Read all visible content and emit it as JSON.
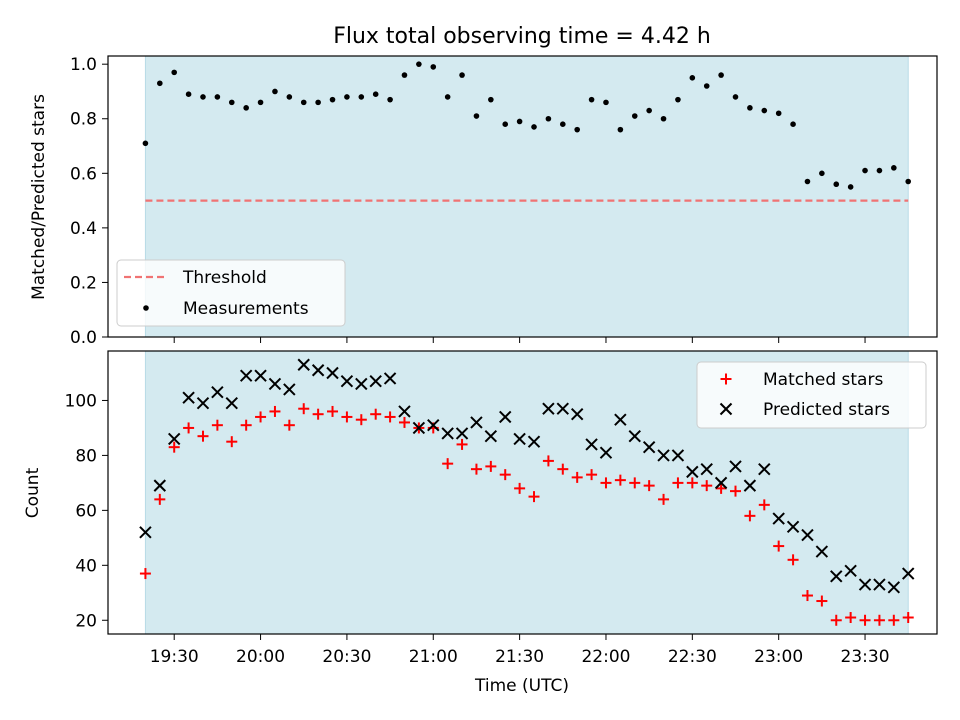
{
  "title": "Flux total observing time = 4.42 h",
  "chart_data": [
    {
      "type": "scatter",
      "ylabel": "Matched/Predicted stars",
      "xlabel": "",
      "xlim": [
        "19:07",
        "23:55"
      ],
      "ylim": [
        0,
        1.03
      ],
      "yticks": [
        0.0,
        0.2,
        0.4,
        0.6,
        0.8,
        1.0
      ],
      "yticklabels": [
        "0.0",
        "0.2",
        "0.4",
        "0.6",
        "0.8",
        "1.0"
      ],
      "grid": false,
      "legend_position": "lower-left",
      "observing_span": [
        "19:20",
        "23:45"
      ],
      "threshold": 0.5,
      "series": [
        {
          "name": "Threshold",
          "kind": "dashed-line",
          "color": "#f07373",
          "x": [
            "19:20",
            "23:45"
          ],
          "y": [
            0.5,
            0.5
          ]
        },
        {
          "name": "Measurements",
          "kind": "dot",
          "color": "#000000",
          "x": [
            "19:20",
            "19:25",
            "19:30",
            "19:35",
            "19:40",
            "19:45",
            "19:50",
            "19:55",
            "20:00",
            "20:05",
            "20:10",
            "20:15",
            "20:20",
            "20:25",
            "20:30",
            "20:35",
            "20:40",
            "20:45",
            "20:50",
            "20:55",
            "21:00",
            "21:05",
            "21:10",
            "21:15",
            "21:20",
            "21:25",
            "21:30",
            "21:35",
            "21:40",
            "21:45",
            "21:50",
            "21:55",
            "22:00",
            "22:05",
            "22:10",
            "22:15",
            "22:20",
            "22:25",
            "22:30",
            "22:35",
            "22:40",
            "22:45",
            "22:50",
            "22:55",
            "23:00",
            "23:05",
            "23:10",
            "23:15",
            "23:20",
            "23:25",
            "23:30",
            "23:35",
            "23:40",
            "23:45"
          ],
          "y": [
            0.71,
            0.93,
            0.97,
            0.89,
            0.88,
            0.88,
            0.86,
            0.84,
            0.86,
            0.9,
            0.88,
            0.86,
            0.86,
            0.87,
            0.88,
            0.88,
            0.89,
            0.87,
            0.96,
            1.0,
            0.99,
            0.88,
            0.96,
            0.81,
            0.87,
            0.78,
            0.79,
            0.77,
            0.8,
            0.78,
            0.76,
            0.87,
            0.86,
            0.76,
            0.81,
            0.83,
            0.8,
            0.87,
            0.95,
            0.92,
            0.96,
            0.88,
            0.84,
            0.83,
            0.82,
            0.78,
            0.57,
            0.6,
            0.56,
            0.55,
            0.61,
            0.61,
            0.62,
            0.57
          ]
        }
      ]
    },
    {
      "type": "scatter",
      "xlabel": "Time (UTC)",
      "ylabel": "Count",
      "xlim": [
        "19:07",
        "23:55"
      ],
      "ylim": [
        15,
        118
      ],
      "yticks": [
        20,
        40,
        60,
        80,
        100
      ],
      "yticklabels": [
        "20",
        "40",
        "60",
        "80",
        "100"
      ],
      "xticks": [
        "19:30",
        "20:00",
        "20:30",
        "21:00",
        "21:30",
        "22:00",
        "22:30",
        "23:00",
        "23:30"
      ],
      "grid": false,
      "legend_position": "upper-right",
      "observing_span": [
        "19:20",
        "23:45"
      ],
      "series": [
        {
          "name": "Matched stars",
          "marker": "plus",
          "color": "#ff0000",
          "x": [
            "19:20",
            "19:25",
            "19:30",
            "19:35",
            "19:40",
            "19:45",
            "19:50",
            "19:55",
            "20:00",
            "20:05",
            "20:10",
            "20:15",
            "20:20",
            "20:25",
            "20:30",
            "20:35",
            "20:40",
            "20:45",
            "20:50",
            "20:55",
            "21:00",
            "21:05",
            "21:10",
            "21:15",
            "21:20",
            "21:25",
            "21:30",
            "21:35",
            "21:40",
            "21:45",
            "21:50",
            "21:55",
            "22:00",
            "22:05",
            "22:10",
            "22:15",
            "22:20",
            "22:25",
            "22:30",
            "22:35",
            "22:40",
            "22:45",
            "22:50",
            "22:55",
            "23:00",
            "23:05",
            "23:10",
            "23:15",
            "23:20",
            "23:25",
            "23:30",
            "23:35",
            "23:40",
            "23:45"
          ],
          "y": [
            37,
            64,
            83,
            90,
            87,
            91,
            85,
            91,
            94,
            96,
            91,
            97,
            95,
            96,
            94,
            93,
            95,
            94,
            92,
            90,
            90,
            77,
            84,
            75,
            76,
            73,
            68,
            65,
            78,
            75,
            72,
            73,
            70,
            71,
            70,
            69,
            64,
            70,
            70,
            69,
            68,
            67,
            58,
            62,
            47,
            42,
            29,
            27,
            20,
            21,
            20,
            20,
            20,
            21
          ]
        },
        {
          "name": "Predicted stars",
          "marker": "x",
          "color": "#000000",
          "x": [
            "19:20",
            "19:25",
            "19:30",
            "19:35",
            "19:40",
            "19:45",
            "19:50",
            "19:55",
            "20:00",
            "20:05",
            "20:10",
            "20:15",
            "20:20",
            "20:25",
            "20:30",
            "20:35",
            "20:40",
            "20:45",
            "20:50",
            "20:55",
            "21:00",
            "21:05",
            "21:10",
            "21:15",
            "21:20",
            "21:25",
            "21:30",
            "21:35",
            "21:40",
            "21:45",
            "21:50",
            "21:55",
            "22:00",
            "22:05",
            "22:10",
            "22:15",
            "22:20",
            "22:25",
            "22:30",
            "22:35",
            "22:40",
            "22:45",
            "22:50",
            "22:55",
            "23:00",
            "23:05",
            "23:10",
            "23:15",
            "23:20",
            "23:25",
            "23:30",
            "23:35",
            "23:40",
            "23:45"
          ],
          "y": [
            52,
            69,
            86,
            101,
            99,
            103,
            99,
            109,
            109,
            106,
            104,
            113,
            111,
            110,
            107,
            106,
            107,
            108,
            96,
            90,
            91,
            88,
            88,
            92,
            87,
            94,
            86,
            85,
            97,
            97,
            95,
            84,
            81,
            93,
            87,
            83,
            80,
            80,
            74,
            75,
            70,
            76,
            69,
            75,
            57,
            54,
            51,
            45,
            36,
            38,
            33,
            33,
            32,
            37
          ]
        }
      ]
    }
  ],
  "colors": {
    "observing_shade": "#d4eaf0",
    "shade_edge": "#b8dbe6",
    "threshold": "#f07373",
    "matched": "#ff0000",
    "predicted": "#000000",
    "measurement": "#000000"
  }
}
